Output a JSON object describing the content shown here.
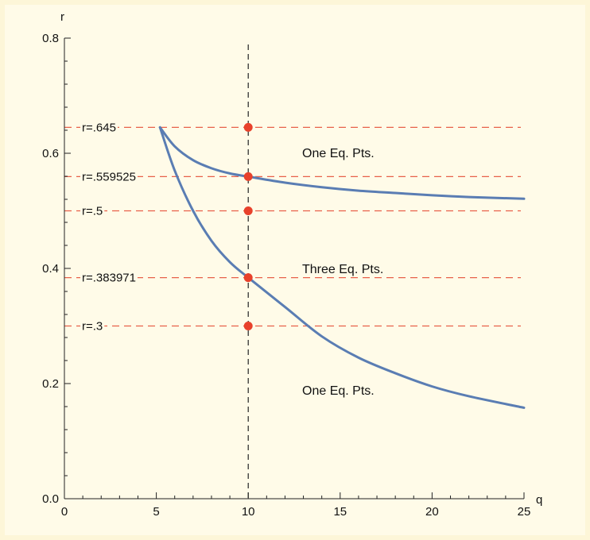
{
  "chart_data": {
    "type": "line",
    "xlabel": "q",
    "ylabel": "r",
    "xlim": [
      0,
      25
    ],
    "ylim": [
      0,
      0.8
    ],
    "x_ticks": [
      0,
      5,
      10,
      15,
      20,
      25
    ],
    "x_tick_labels": [
      "0",
      "5",
      "10",
      "15",
      "20",
      "25"
    ],
    "y_ticks": [
      0,
      0.2,
      0.4,
      0.6,
      0.8
    ],
    "y_tick_labels": [
      "0.0",
      "0.2",
      "0.4",
      "0.6",
      "0.8"
    ],
    "grid": false,
    "series": [
      {
        "color": "#5a7db3",
        "x": [
          5.2,
          6,
          7,
          8,
          9,
          10,
          12,
          14,
          16,
          18,
          20,
          22,
          25
        ],
        "y": [
          0.645,
          0.612,
          0.588,
          0.574,
          0.565,
          0.5595,
          0.549,
          0.541,
          0.535,
          0.531,
          0.527,
          0.524,
          0.521
        ]
      },
      {
        "color": "#5a7db3",
        "x": [
          5.2,
          6,
          7,
          8,
          9,
          10,
          12,
          14,
          16,
          18,
          20,
          22,
          25
        ],
        "y": [
          0.645,
          0.57,
          0.5,
          0.448,
          0.411,
          0.384,
          0.333,
          0.282,
          0.245,
          0.218,
          0.195,
          0.178,
          0.158
        ]
      }
    ],
    "horizontal_lines": [
      {
        "y": 0.645,
        "label": "r=.645"
      },
      {
        "y": 0.559525,
        "label": "r=.559525"
      },
      {
        "y": 0.5,
        "label": "r=.5"
      },
      {
        "y": 0.383971,
        "label": "r=.383971"
      },
      {
        "y": 0.3,
        "label": "r=.3"
      }
    ],
    "vertical_line": {
      "x": 10
    },
    "points": [
      {
        "x": 10,
        "y": 0.645
      },
      {
        "x": 10,
        "y": 0.559525
      },
      {
        "x": 10,
        "y": 0.5
      },
      {
        "x": 10,
        "y": 0.383971
      },
      {
        "x": 10,
        "y": 0.3
      }
    ],
    "annotations": [
      {
        "text": "One Eq. Pts.",
        "x": 13.5,
        "y": 0.61
      },
      {
        "text": "Three Eq. Pts.",
        "x": 13.5,
        "y": 0.4
      },
      {
        "text": "One Eq. Pts.",
        "x": 13.5,
        "y": 0.375,
        "region": "below"
      }
    ],
    "colors": {
      "curve": "#5a7db3",
      "hline": "#e8604a",
      "point": "#e8412b",
      "vline": "#222222"
    }
  }
}
